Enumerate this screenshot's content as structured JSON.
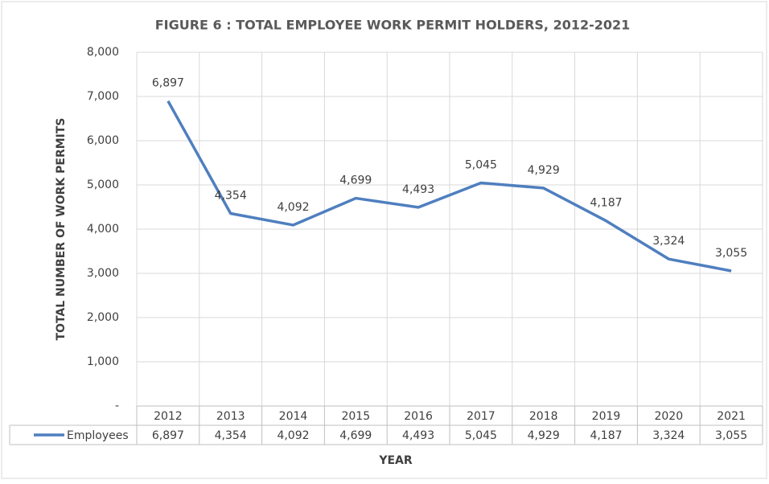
{
  "chart_data": {
    "type": "line",
    "title": "FIGURE 6 : TOTAL EMPLOYEE WORK PERMIT HOLDERS, 2012-2021",
    "x_label": "YEAR",
    "y_label": "TOTAL NUMBER OF WORK PERMITS",
    "categories": [
      "2012",
      "2013",
      "2014",
      "2015",
      "2016",
      "2017",
      "2018",
      "2019",
      "2020",
      "2021"
    ],
    "series": [
      {
        "name": "Employees",
        "color": "#4f7fbf",
        "values": [
          6897,
          4354,
          4092,
          4699,
          4493,
          5045,
          4929,
          4187,
          3324,
          3055
        ],
        "value_labels": [
          "6,897",
          "4,354",
          "4,092",
          "4,699",
          "4,493",
          "5,045",
          "4,929",
          "4,187",
          "3,324",
          "3,055"
        ]
      }
    ],
    "ylim": [
      0,
      8000
    ],
    "yticks": [
      {
        "value": 0,
        "label": "-"
      },
      {
        "value": 1000,
        "label": "1,000"
      },
      {
        "value": 2000,
        "label": "2,000"
      },
      {
        "value": 3000,
        "label": "3,000"
      },
      {
        "value": 4000,
        "label": "4,000"
      },
      {
        "value": 5000,
        "label": "5,000"
      },
      {
        "value": 6000,
        "label": "6,000"
      },
      {
        "value": 7000,
        "label": "7,000"
      },
      {
        "value": 8000,
        "label": "8,000"
      }
    ],
    "grid": true,
    "data_table": true
  }
}
